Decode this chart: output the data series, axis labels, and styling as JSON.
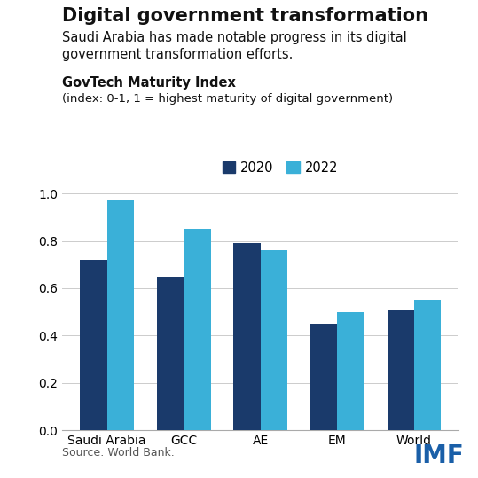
{
  "title": "Digital government transformation",
  "subtitle": "Saudi Arabia has made notable progress in its digital\ngovernment transformation efforts.",
  "section_label": "GovTech Maturity Index",
  "section_sublabel": "(index: 0-1, 1 = highest maturity of digital government)",
  "categories": [
    "Saudi Arabia",
    "GCC",
    "AE",
    "EM",
    "World"
  ],
  "values_2020": [
    0.72,
    0.65,
    0.79,
    0.45,
    0.51
  ],
  "values_2022": [
    0.97,
    0.85,
    0.76,
    0.5,
    0.55
  ],
  "color_2020": "#1a3a6b",
  "color_2022": "#3ab0d8",
  "ylim": [
    0.0,
    1.05
  ],
  "yticks": [
    0.0,
    0.2,
    0.4,
    0.6,
    0.8,
    1.0
  ],
  "legend_labels": [
    "2020",
    "2022"
  ],
  "source_text": "Source: World Bank.",
  "imf_text": "IMF",
  "background_color": "#ffffff",
  "bar_width": 0.35,
  "title_fontsize": 15,
  "subtitle_fontsize": 10.5,
  "section_fontsize": 10.5,
  "section_sub_fontsize": 9.5,
  "tick_fontsize": 10,
  "legend_fontsize": 10.5,
  "source_fontsize": 9,
  "imf_fontsize": 20
}
